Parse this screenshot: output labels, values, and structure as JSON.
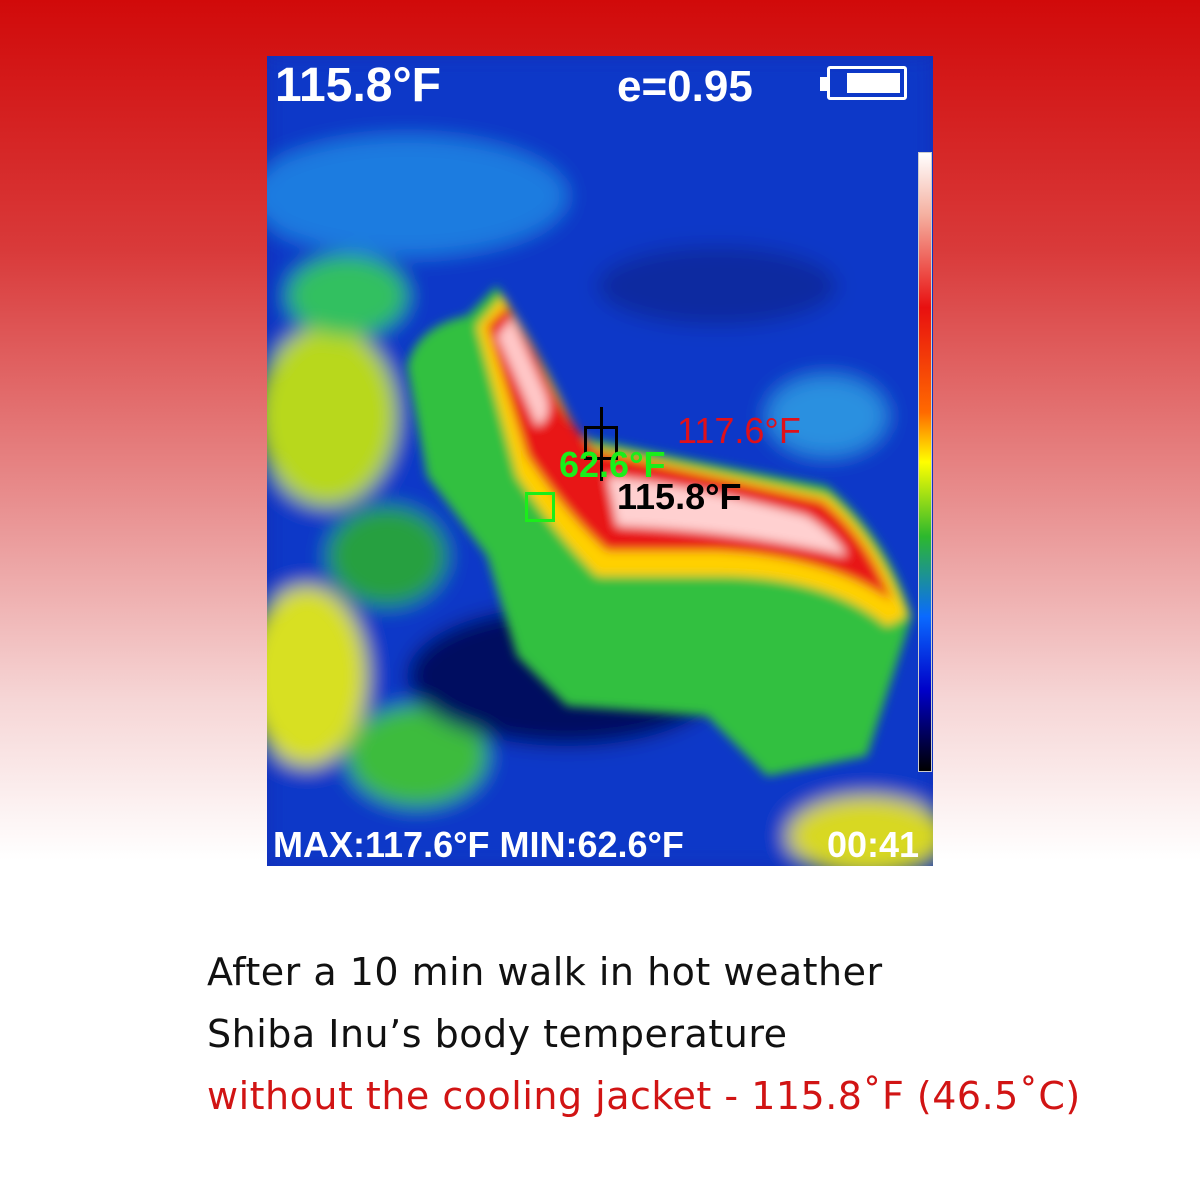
{
  "thermal_display": {
    "center_temp": "115.8°F",
    "emissivity": "e=0.95",
    "battery_level": 0.8,
    "spot_max": "117.6°F",
    "spot_min": "62.6°F",
    "spot_center": "115.8°F",
    "stats": "MAX:117.6°F MIN:62.6°F",
    "clock": "00:41"
  },
  "caption": {
    "line1": "After a 10 min walk in hot weather",
    "line2": "Shiba Inu’s body temperature",
    "line3": "without the cooling jacket - 115.8˚F (46.5˚C)"
  },
  "colors": {
    "accent_red": "#d11414",
    "spot_max": "#e0101a",
    "spot_min": "#1aee1a"
  }
}
